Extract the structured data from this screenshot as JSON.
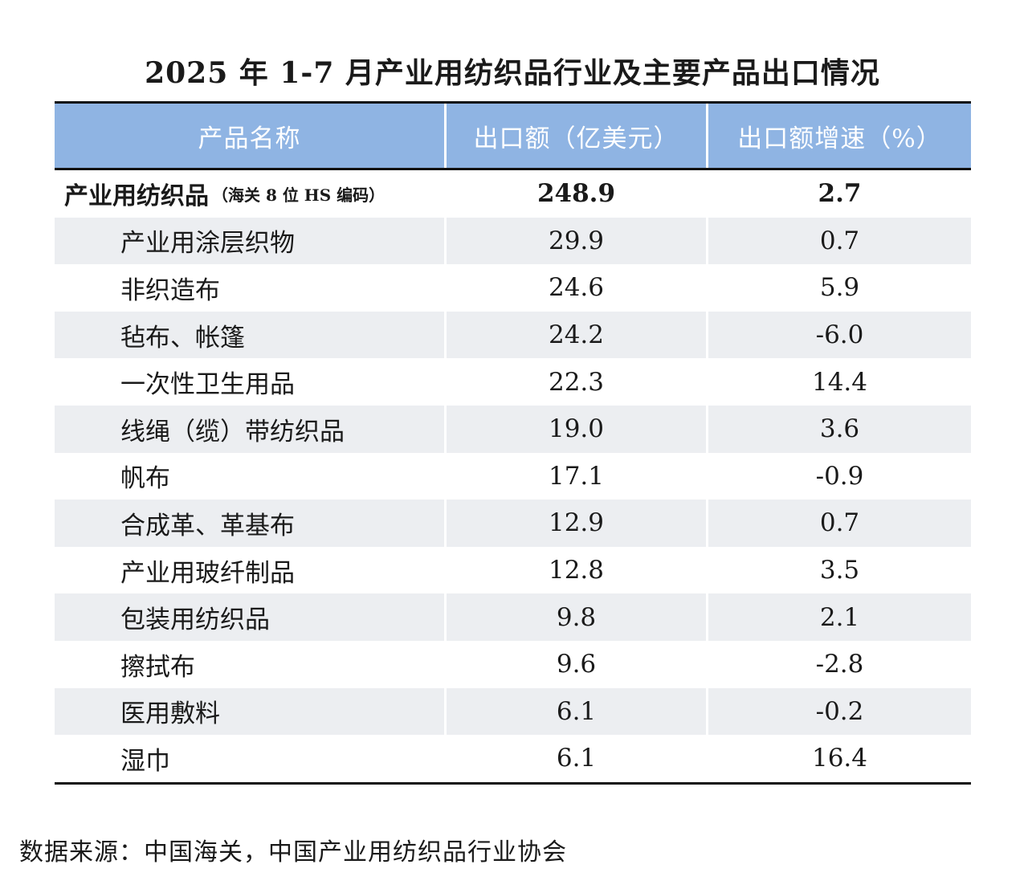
{
  "title": "2025 年 1-7 月产业用纺织品行业及主要产品出口情况",
  "table": {
    "headers": [
      "产品名称",
      "出口额（亿美元）",
      "出口额增速（%）"
    ],
    "total": {
      "name": "产业用纺织品",
      "note": "（海关 8 位 HS 编码）",
      "export": "248.9",
      "growth": "2.7"
    },
    "rows": [
      {
        "name": "产业用涂层织物",
        "export": "29.9",
        "growth": "0.7"
      },
      {
        "name": "非织造布",
        "export": "24.6",
        "growth": "5.9"
      },
      {
        "name": "毡布、帐篷",
        "export": "24.2",
        "growth": "-6.0"
      },
      {
        "name": "一次性卫生用品",
        "export": "22.3",
        "growth": "14.4"
      },
      {
        "name": "线绳（缆）带纺织品",
        "export": "19.0",
        "growth": "3.6"
      },
      {
        "name": "帆布",
        "export": "17.1",
        "growth": "-0.9"
      },
      {
        "name": "合成革、革基布",
        "export": "12.9",
        "growth": "0.7"
      },
      {
        "name": "产业用玻纤制品",
        "export": "12.8",
        "growth": "3.5"
      },
      {
        "name": "包装用纺织品",
        "export": "9.8",
        "growth": "2.1"
      },
      {
        "name": "擦拭布",
        "export": "9.6",
        "growth": "-2.8"
      },
      {
        "name": "医用敷料",
        "export": "6.1",
        "growth": "-0.2"
      },
      {
        "name": "湿巾",
        "export": "6.1",
        "growth": "16.4"
      }
    ]
  },
  "source": "数据来源：中国海关，中国产业用纺织品行业协会"
}
